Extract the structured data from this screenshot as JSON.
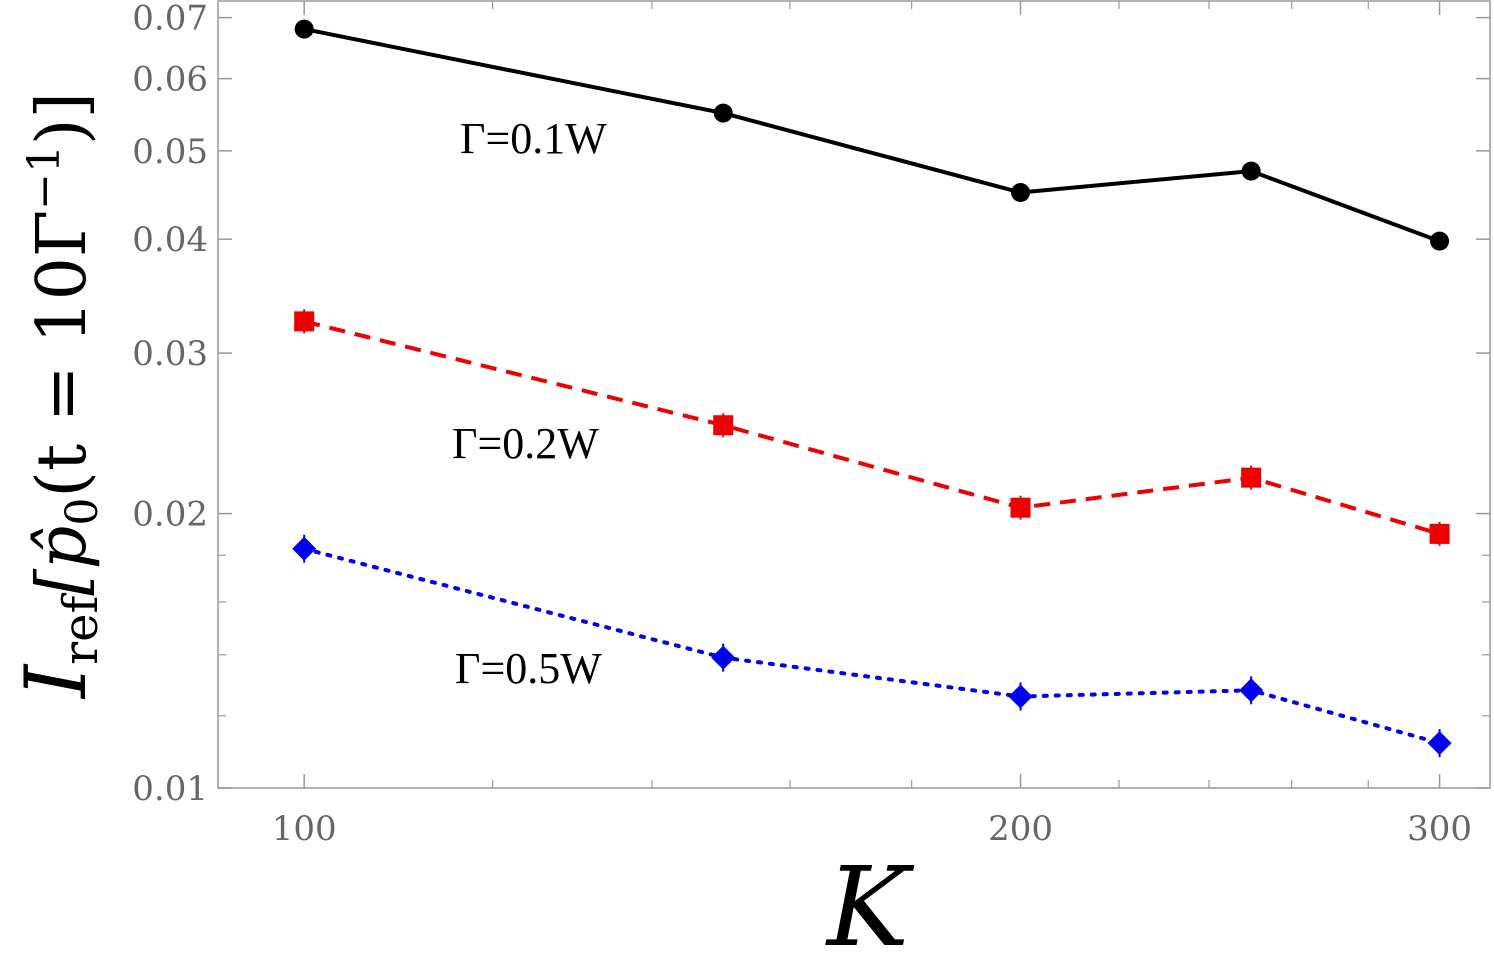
{
  "chart_data": {
    "type": "line",
    "x_scale": "log",
    "y_scale": "log",
    "xlabel": "K",
    "ylabel": {
      "main": "I",
      "sub": "ref",
      "rest": "[p̂",
      "sub2": "0",
      "tail": "(t = 10Γ",
      "sup": "−1",
      "close": ")]"
    },
    "xlim": [
      92,
      315
    ],
    "ylim": [
      0.01,
      0.073
    ],
    "x_ticks": [
      {
        "value": 100,
        "label": "100"
      },
      {
        "value": 200,
        "label": "200"
      },
      {
        "value": 300,
        "label": "300"
      }
    ],
    "y_ticks": [
      {
        "value": 0.01,
        "label": "0.01"
      },
      {
        "value": 0.02,
        "label": "0.02"
      },
      {
        "value": 0.03,
        "label": "0.03"
      },
      {
        "value": 0.04,
        "label": "0.04"
      },
      {
        "value": 0.05,
        "label": "0.05"
      },
      {
        "value": 0.06,
        "label": "0.06"
      },
      {
        "value": 0.07,
        "label": "0.07"
      }
    ],
    "x_minor_ticks": [
      120,
      140,
      160,
      180,
      220,
      240,
      260,
      280
    ],
    "y_minor_ticks": [
      0.012,
      0.014,
      0.016,
      0.018
    ],
    "grid": false,
    "x": [
      100,
      150,
      200,
      250,
      300
    ],
    "series": [
      {
        "name": "Γ=0.1W",
        "values": [
          0.068,
          0.055,
          0.045,
          0.0475,
          0.0398
        ],
        "color": "#000000",
        "marker": "circle",
        "dash": "solid"
      },
      {
        "name": "Γ=0.2W",
        "values": [
          0.0325,
          0.025,
          0.0203,
          0.0219,
          0.019
        ],
        "color": "#ee0000",
        "marker": "square",
        "dash": "dashed"
      },
      {
        "name": "Γ=0.5W",
        "values": [
          0.0183,
          0.0139,
          0.0126,
          0.0128,
          0.0112
        ],
        "color": "#0000ee",
        "marker": "diamond",
        "dash": "dotted"
      }
    ]
  }
}
